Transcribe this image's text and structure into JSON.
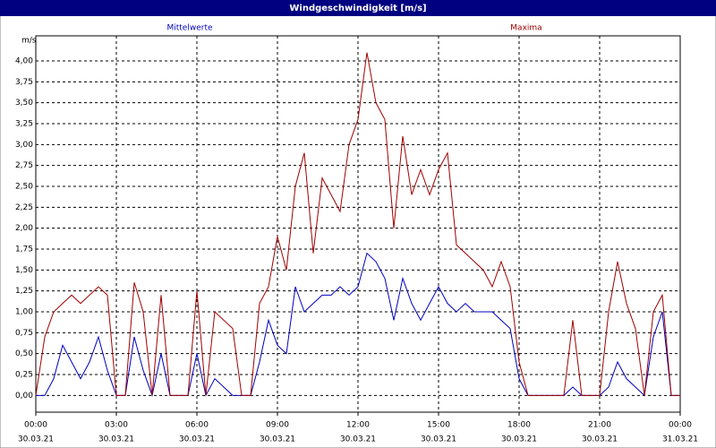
{
  "chart_data": {
    "type": "line",
    "title": "Windgeschwindigkeit [m/s]",
    "y_label": "m/s",
    "x": [
      "30.03.21 00:00",
      "30.03.21 00:20",
      "30.03.21 00:40",
      "30.03.21 01:00",
      "30.03.21 01:20",
      "30.03.21 01:40",
      "30.03.21 02:00",
      "30.03.21 02:20",
      "30.03.21 02:40",
      "30.03.21 03:00",
      "30.03.21 03:20",
      "30.03.21 03:40",
      "30.03.21 04:00",
      "30.03.21 04:20",
      "30.03.21 04:40",
      "30.03.21 05:00",
      "30.03.21 05:20",
      "30.03.21 05:40",
      "30.03.21 06:00",
      "30.03.21 06:20",
      "30.03.21 06:40",
      "30.03.21 07:00",
      "30.03.21 07:20",
      "30.03.21 07:40",
      "30.03.21 08:00",
      "30.03.21 08:20",
      "30.03.21 08:40",
      "30.03.21 09:00",
      "30.03.21 09:20",
      "30.03.21 09:40",
      "30.03.21 10:00",
      "30.03.21 10:20",
      "30.03.21 10:40",
      "30.03.21 11:00",
      "30.03.21 11:20",
      "30.03.21 11:40",
      "30.03.21 12:00",
      "30.03.21 12:20",
      "30.03.21 12:40",
      "30.03.21 13:00",
      "30.03.21 13:20",
      "30.03.21 13:40",
      "30.03.21 14:00",
      "30.03.21 14:20",
      "30.03.21 14:40",
      "30.03.21 15:00",
      "30.03.21 15:20",
      "30.03.21 15:40",
      "30.03.21 16:00",
      "30.03.21 16:20",
      "30.03.21 16:40",
      "30.03.21 17:00",
      "30.03.21 17:20",
      "30.03.21 17:40",
      "30.03.21 18:00",
      "30.03.21 18:20",
      "30.03.21 18:40",
      "30.03.21 19:00",
      "30.03.21 19:20",
      "30.03.21 19:40",
      "30.03.21 20:00",
      "30.03.21 20:20",
      "30.03.21 20:40",
      "30.03.21 21:00",
      "30.03.21 21:20",
      "30.03.21 21:40",
      "30.03.21 22:00",
      "30.03.21 22:20",
      "30.03.21 22:40",
      "30.03.21 23:00",
      "30.03.21 23:20",
      "30.03.21 23:40",
      "31.03.21 00:00"
    ],
    "series": [
      {
        "name": "Mittelwerte",
        "color": "#0000c0",
        "values": [
          0,
          0,
          0.2,
          0.6,
          0.4,
          0.2,
          0.4,
          0.7,
          0.3,
          0,
          0,
          0.7,
          0.3,
          0,
          0.5,
          0,
          0,
          0,
          0.5,
          0,
          0.2,
          0.1,
          0,
          0,
          0,
          0.4,
          0.9,
          0.6,
          0.5,
          1.3,
          1.0,
          1.1,
          1.2,
          1.2,
          1.3,
          1.2,
          1.3,
          1.7,
          1.6,
          1.4,
          0.9,
          1.4,
          1.1,
          0.9,
          1.1,
          1.3,
          1.1,
          1.0,
          1.1,
          1.0,
          1.0,
          1.0,
          0.9,
          0.8,
          0.2,
          0,
          0,
          0,
          0,
          0,
          0.1,
          0,
          0,
          0,
          0.1,
          0.4,
          0.2,
          0.1,
          0,
          0.7,
          1.0,
          0,
          0
        ]
      },
      {
        "name": "Maxima",
        "color": "#a00000",
        "values": [
          0,
          0.7,
          1.0,
          1.1,
          1.2,
          1.1,
          1.2,
          1.3,
          1.2,
          0,
          0,
          1.35,
          1.0,
          0,
          1.2,
          0,
          0,
          0,
          1.25,
          0,
          1.0,
          0.9,
          0.8,
          0,
          0,
          1.1,
          1.3,
          1.9,
          1.5,
          2.5,
          2.9,
          1.7,
          2.6,
          2.4,
          2.2,
          3.0,
          3.3,
          4.1,
          3.5,
          3.3,
          2.0,
          3.1,
          2.4,
          2.7,
          2.4,
          2.7,
          2.9,
          1.8,
          1.7,
          1.6,
          1.5,
          1.3,
          1.6,
          1.3,
          0.4,
          0,
          0,
          0,
          0,
          0,
          0.9,
          0,
          0,
          0,
          1.0,
          1.6,
          1.1,
          0.8,
          0,
          1.0,
          1.2,
          0,
          0
        ]
      }
    ],
    "xlim": [
      "30.03.21 00:00",
      "31.03.21 00:00"
    ],
    "xticks": [
      {
        "value": "30.03.21 00:00",
        "label": "00:00",
        "date": "30.03.21"
      },
      {
        "value": "30.03.21 03:00",
        "label": "03:00",
        "date": "30.03.21"
      },
      {
        "value": "30.03.21 06:00",
        "label": "06:00",
        "date": "30.03.21"
      },
      {
        "value": "30.03.21 09:00",
        "label": "09:00",
        "date": "30.03.21"
      },
      {
        "value": "30.03.21 12:00",
        "label": "12:00",
        "date": "30.03.21"
      },
      {
        "value": "30.03.21 15:00",
        "label": "15:00",
        "date": "30.03.21"
      },
      {
        "value": "30.03.21 18:00",
        "label": "18:00",
        "date": "30.03.21"
      },
      {
        "value": "30.03.21 21:00",
        "label": "21:00",
        "date": "30.03.21"
      },
      {
        "value": "31.03.21 00:00",
        "label": "00:00",
        "date": "31.03.21"
      }
    ],
    "ylim": [
      -0.2,
      4.3
    ],
    "yticks": [
      {
        "value": 0,
        "label": "0,00"
      },
      {
        "value": 0.25,
        "label": "0,25"
      },
      {
        "value": 0.5,
        "label": "0,50"
      },
      {
        "value": 0.75,
        "label": "0,75"
      },
      {
        "value": 1,
        "label": "1,00"
      },
      {
        "value": 1.25,
        "label": "1,25"
      },
      {
        "value": 1.5,
        "label": "1,50"
      },
      {
        "value": 1.75,
        "label": "1,75"
      },
      {
        "value": 2,
        "label": "2,00"
      },
      {
        "value": 2.25,
        "label": "2,25"
      },
      {
        "value": 2.5,
        "label": "2,50"
      },
      {
        "value": 2.75,
        "label": "2,75"
      },
      {
        "value": 3,
        "label": "3,00"
      },
      {
        "value": 3.25,
        "label": "3,25"
      },
      {
        "value": 3.5,
        "label": "3,50"
      },
      {
        "value": 3.75,
        "label": "3,75"
      },
      {
        "value": 4,
        "label": "4,00"
      }
    ],
    "grid": true
  }
}
